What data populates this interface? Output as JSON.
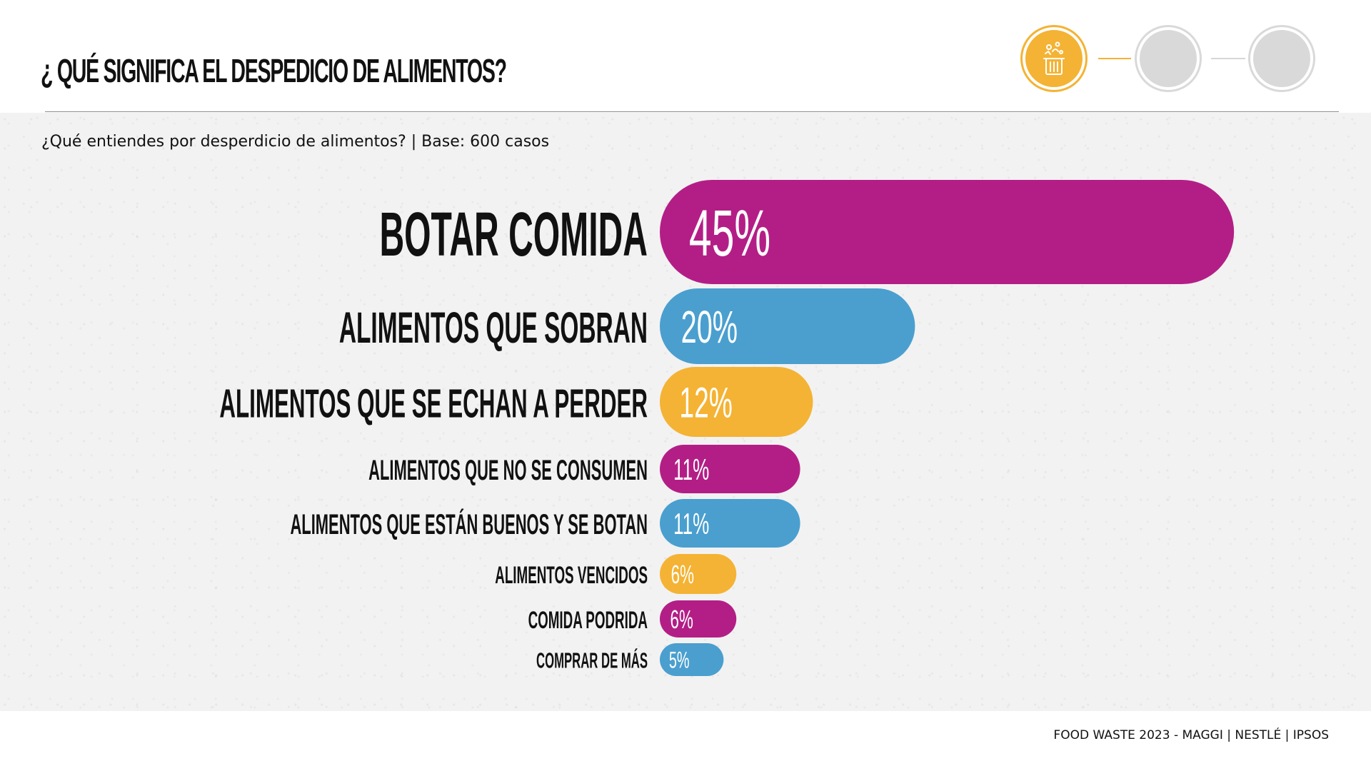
{
  "page": {
    "title": "¿ QUÉ SIGNIFICA EL DESPEDICIO DE ALIMENTOS?",
    "subtitle": "¿Qué entiendes por desperdicio de alimentos? | Base: 600 casos",
    "footer": "FOOD WASTE 2023 - MAGGI | NESTLÉ | IPSOS"
  },
  "progress_steps": [
    {
      "state": "active",
      "icon": "trash-bin-food-icon",
      "color": "#F4B334"
    },
    {
      "state": "inactive",
      "color": "#d9d9d9"
    },
    {
      "state": "inactive",
      "color": "#d9d9d9"
    }
  ],
  "chart_data": {
    "type": "bar",
    "orientation": "horizontal",
    "categories": [
      "BOTAR COMIDA",
      "ALIMENTOS QUE SOBRAN",
      "ALIMENTOS QUE SE ECHAN A PERDER",
      "ALIMENTOS QUE NO SE CONSUMEN",
      "ALIMENTOS QUE ESTÁN BUENOS Y SE BOTAN",
      "ALIMENTOS VENCIDOS",
      "COMIDA PODRIDA",
      "COMPRAR DE MÁS"
    ],
    "values": [
      45,
      20,
      12,
      11,
      11,
      6,
      6,
      5
    ],
    "value_labels": [
      "45%",
      "20%",
      "12%",
      "11%",
      "11%",
      "6%",
      "6%",
      "5%"
    ],
    "unit": "%",
    "colors": [
      "#B31E86",
      "#4A9FCF",
      "#F4B334",
      "#B31E86",
      "#4A9FCF",
      "#F4B334",
      "#B31E86",
      "#4A9FCF"
    ],
    "grid": false,
    "legend": "none"
  }
}
